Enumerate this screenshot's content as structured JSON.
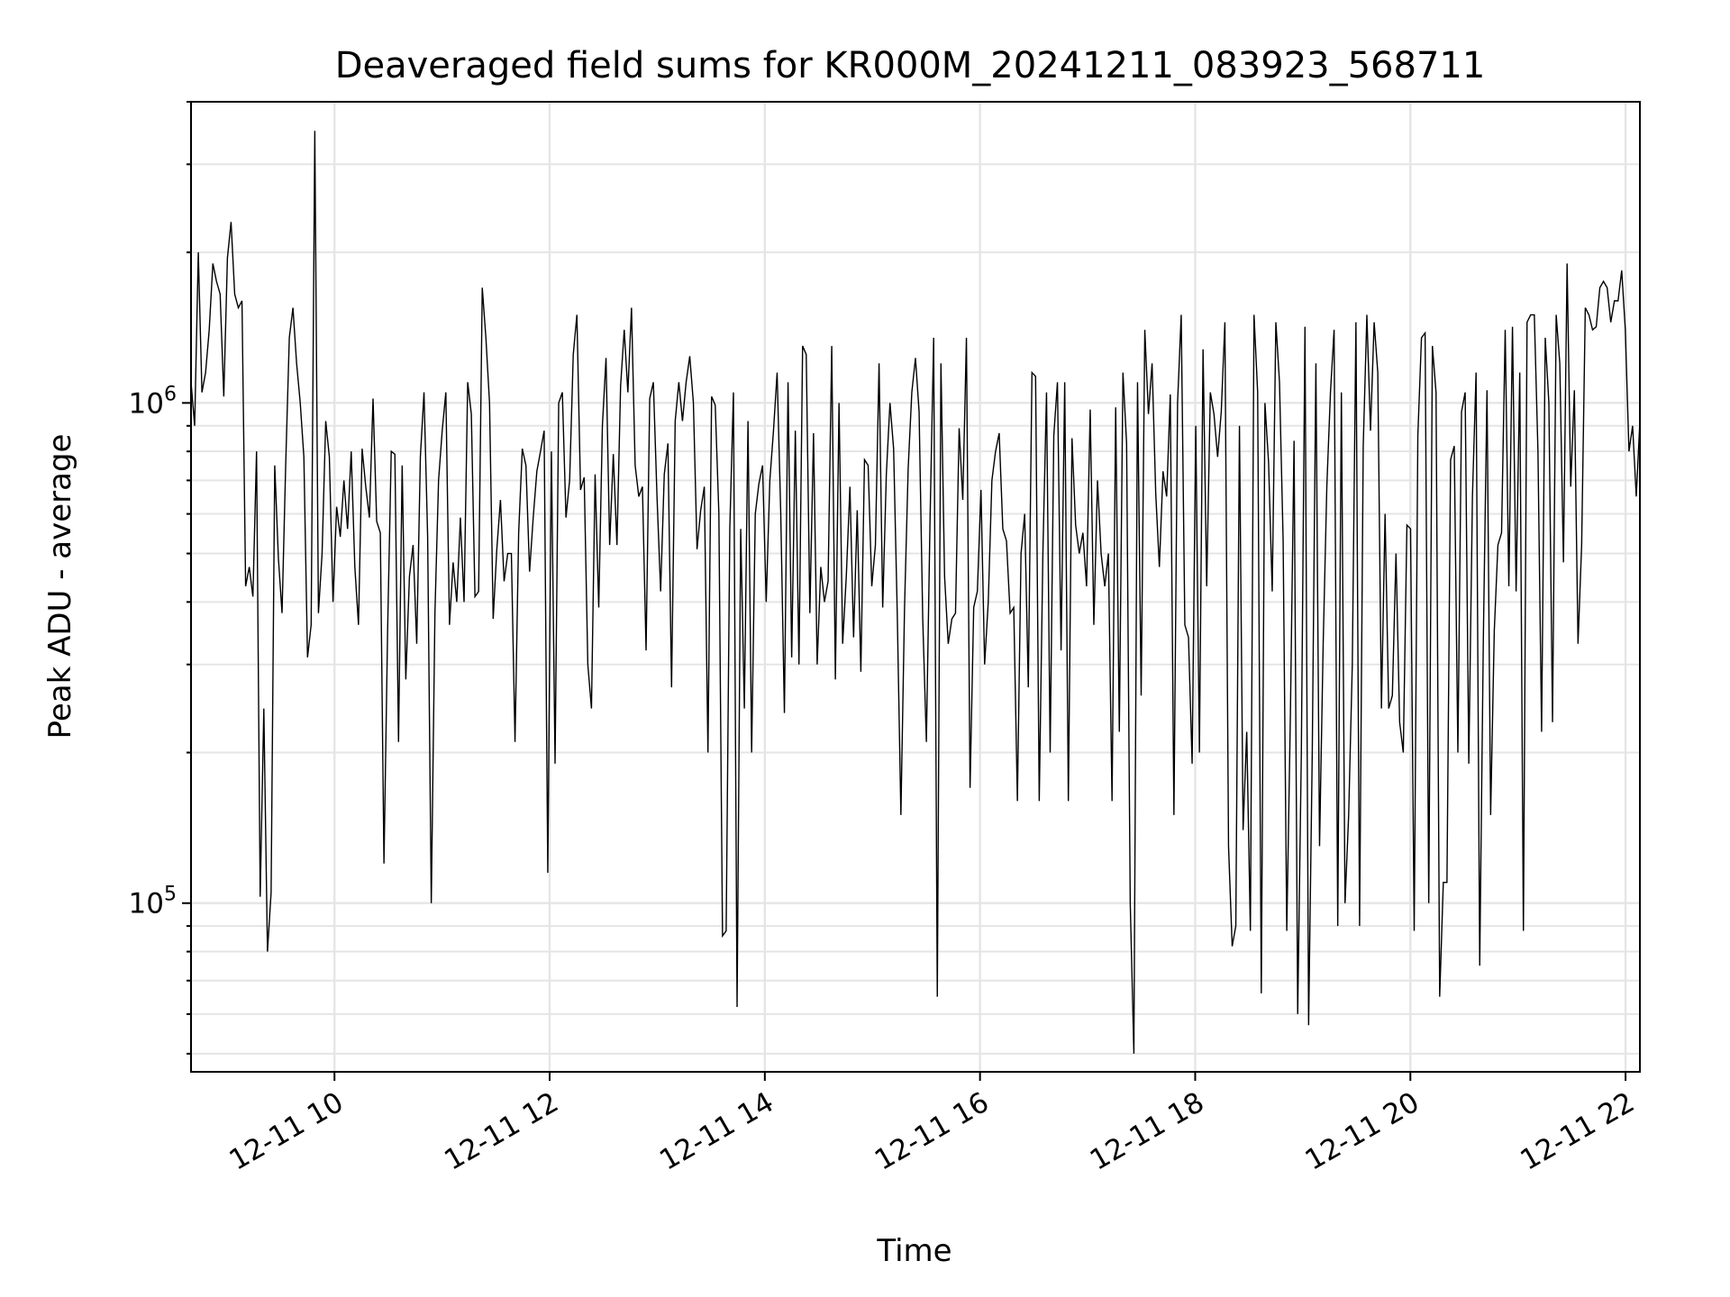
{
  "chart_data": {
    "type": "line",
    "title": "Deaveraged field sums for KR000M_20241211_083923_568711",
    "xlabel": "Time",
    "ylabel": "Peak ADU - average",
    "yscale": "log",
    "grid": true,
    "line_color": "#000000",
    "grid_color": "#e5e5e5",
    "xlim": [
      "2024-12-11 08:40",
      "2024-12-11 22:08"
    ],
    "ylim": [
      46000,
      4000000
    ],
    "x_ticks": [
      {
        "value": "2024-12-11 10:00",
        "label": "12-11 10"
      },
      {
        "value": "2024-12-11 12:00",
        "label": "12-11 12"
      },
      {
        "value": "2024-12-11 14:00",
        "label": "12-11 14"
      },
      {
        "value": "2024-12-11 16:00",
        "label": "12-11 16"
      },
      {
        "value": "2024-12-11 18:00",
        "label": "12-11 18"
      },
      {
        "value": "2024-12-11 20:00",
        "label": "12-11 20"
      },
      {
        "value": "2024-12-11 22:00",
        "label": "12-11 22"
      }
    ],
    "y_ticks": [
      {
        "value": 100000,
        "base": "10",
        "exponent": "5"
      },
      {
        "value": 1000000,
        "base": "10",
        "exponent": "6"
      }
    ],
    "series": [
      {
        "x_start": "2024-12-11 08:40",
        "x_end": "2024-12-11 22:08",
        "values": [
          1100000,
          900000,
          2000000,
          1050000,
          1150000,
          1400000,
          1900000,
          1750000,
          1650000,
          1030000,
          1950000,
          2300000,
          1650000,
          1550000,
          1600000,
          430000,
          470000,
          410000,
          800000,
          103000,
          245000,
          80000,
          105000,
          750000,
          490000,
          380000,
          750000,
          1350000,
          1550000,
          1200000,
          1000000,
          780000,
          310000,
          360000,
          3500000,
          380000,
          500000,
          920000,
          780000,
          400000,
          620000,
          540000,
          700000,
          560000,
          800000,
          470000,
          360000,
          810000,
          680000,
          590000,
          1020000,
          580000,
          550000,
          120000,
          350000,
          800000,
          790000,
          210000,
          750000,
          280000,
          450000,
          520000,
          330000,
          780000,
          1050000,
          540000,
          100000,
          380000,
          700000,
          880000,
          1050000,
          360000,
          480000,
          400000,
          590000,
          400000,
          1100000,
          950000,
          410000,
          420000,
          1700000,
          1350000,
          1000000,
          370000,
          510000,
          640000,
          440000,
          500000,
          500000,
          210000,
          550000,
          810000,
          750000,
          460000,
          590000,
          730000,
          800000,
          880000,
          115000,
          800000,
          190000,
          1000000,
          1050000,
          590000,
          700000,
          1250000,
          1500000,
          670000,
          710000,
          300000,
          245000,
          720000,
          390000,
          900000,
          1230000,
          520000,
          790000,
          520000,
          1080000,
          1400000,
          1050000,
          1550000,
          750000,
          650000,
          680000,
          320000,
          1020000,
          1100000,
          650000,
          420000,
          720000,
          830000,
          270000,
          920000,
          1100000,
          920000,
          1100000,
          1240000,
          1000000,
          510000,
          610000,
          680000,
          200000,
          1030000,
          990000,
          600000,
          86000,
          88000,
          560000,
          1050000,
          62000,
          560000,
          245000,
          920000,
          200000,
          600000,
          690000,
          750000,
          400000,
          700000,
          880000,
          1150000,
          600000,
          240000,
          1100000,
          310000,
          880000,
          300000,
          1300000,
          1250000,
          380000,
          870000,
          300000,
          470000,
          400000,
          440000,
          1300000,
          280000,
          1000000,
          330000,
          450000,
          680000,
          340000,
          610000,
          290000,
          770000,
          750000,
          430000,
          520000,
          1200000,
          390000,
          720000,
          1000000,
          810000,
          380000,
          150000,
          390000,
          740000,
          1050000,
          1230000,
          960000,
          370000,
          210000,
          580000,
          1350000,
          65000,
          1200000,
          450000,
          330000,
          370000,
          380000,
          890000,
          640000,
          1350000,
          170000,
          390000,
          420000,
          670000,
          300000,
          400000,
          700000,
          800000,
          870000,
          560000,
          530000,
          380000,
          390000,
          160000,
          500000,
          600000,
          270000,
          1150000,
          1130000,
          160000,
          500000,
          1050000,
          200000,
          860000,
          1100000,
          320000,
          1100000,
          160000,
          850000,
          570000,
          500000,
          550000,
          430000,
          970000,
          360000,
          700000,
          500000,
          430000,
          500000,
          160000,
          980000,
          220000,
          1150000,
          830000,
          100000,
          50000,
          1100000,
          260000,
          1400000,
          950000,
          1200000,
          660000,
          470000,
          730000,
          650000,
          1040000,
          150000,
          1000000,
          1500000,
          360000,
          340000,
          190000,
          900000,
          200000,
          1280000,
          430000,
          1050000,
          950000,
          780000,
          960000,
          1450000,
          130000,
          82000,
          90000,
          900000,
          140000,
          220000,
          88000,
          1500000,
          1050000,
          66000,
          1000000,
          760000,
          420000,
          1450000,
          1100000,
          530000,
          88000,
          240000,
          840000,
          60000,
          200000,
          1420000,
          57000,
          200000,
          1200000,
          130000,
          330000,
          680000,
          1050000,
          1400000,
          90000,
          1050000,
          100000,
          150000,
          300000,
          1450000,
          90000,
          820000,
          1500000,
          880000,
          1450000,
          1150000,
          245000,
          600000,
          245000,
          260000,
          500000,
          230000,
          200000,
          570000,
          560000,
          88000,
          860000,
          1350000,
          1380000,
          100000,
          1300000,
          1050000,
          65000,
          110000,
          110000,
          770000,
          820000,
          200000,
          960000,
          1050000,
          190000,
          650000,
          1150000,
          75000,
          340000,
          1060000,
          150000,
          350000,
          520000,
          550000,
          1400000,
          430000,
          1420000,
          420000,
          1150000,
          88000,
          1450000,
          1500000,
          1500000,
          800000,
          220000,
          1350000,
          1000000,
          230000,
          1500000,
          1200000,
          480000,
          1900000,
          680000,
          1060000,
          330000,
          520000,
          1550000,
          1500000,
          1400000,
          1420000,
          1700000,
          1750000,
          1700000,
          1450000,
          1600000,
          1600000,
          1840000,
          1400000,
          800000,
          900000,
          650000,
          920000
        ]
      }
    ]
  }
}
